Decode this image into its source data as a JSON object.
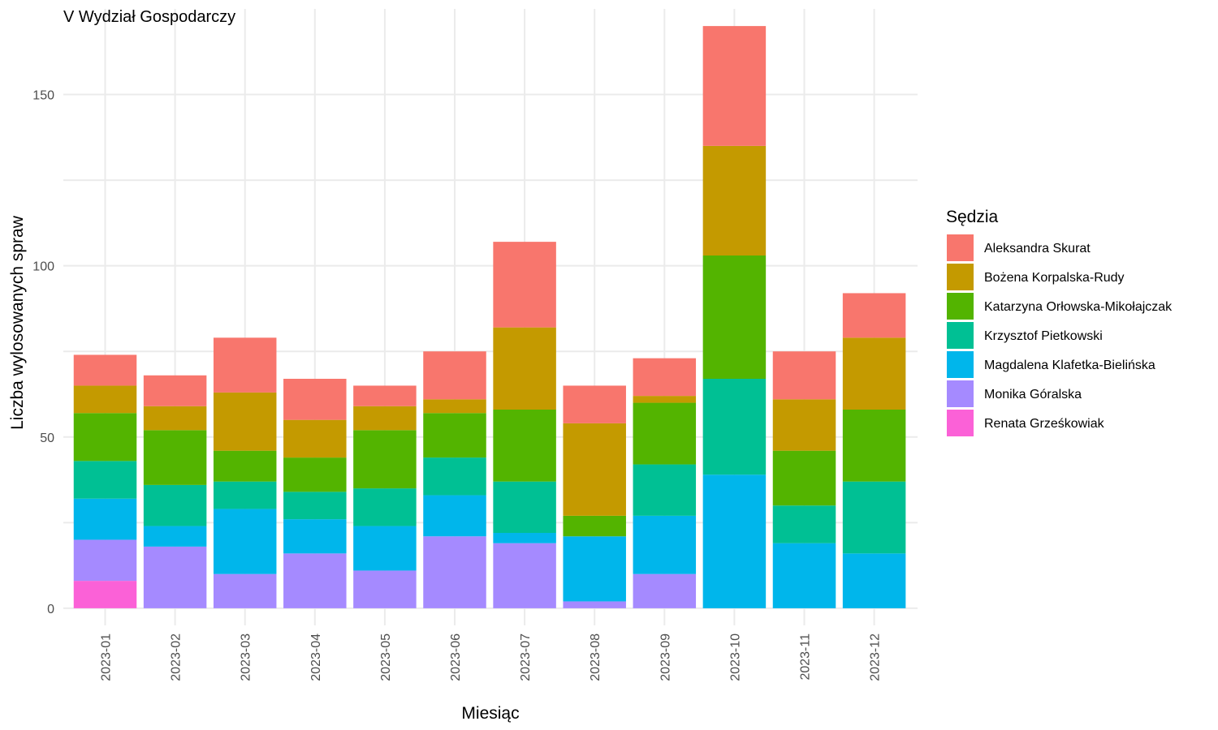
{
  "chart_data": {
    "type": "bar",
    "stacked": true,
    "title": "V Wydział Gospodarczy",
    "xlabel": "Miesiąc",
    "ylabel": "Liczba wylosowanych spraw",
    "ylim": [
      -5,
      175
    ],
    "yticks": [
      0,
      50,
      100,
      150
    ],
    "grid": true,
    "legend_title": "Sędzia",
    "legend_position": "right",
    "categories": [
      "2023-01",
      "2023-02",
      "2023-03",
      "2023-04",
      "2023-05",
      "2023-06",
      "2023-07",
      "2023-08",
      "2023-09",
      "2023-10",
      "2023-11",
      "2023-12"
    ],
    "series": [
      {
        "name": "Aleksandra Skurat",
        "color": "#F8766D",
        "values": [
          9,
          9,
          16,
          12,
          6,
          14,
          25,
          11,
          11,
          35,
          14,
          13
        ]
      },
      {
        "name": "Bożena Korpalska-Rudy",
        "color": "#C49A00",
        "values": [
          8,
          7,
          17,
          11,
          7,
          4,
          24,
          27,
          2,
          32,
          15,
          21
        ]
      },
      {
        "name": "Katarzyna Orłowska-Mikołajczak",
        "color": "#53B400",
        "values": [
          14,
          16,
          9,
          10,
          17,
          13,
          21,
          6,
          18,
          36,
          16,
          21
        ]
      },
      {
        "name": "Krzysztof Pietkowski",
        "color": "#00C094",
        "values": [
          11,
          12,
          8,
          8,
          11,
          11,
          15,
          0,
          15,
          28,
          11,
          21
        ]
      },
      {
        "name": "Magdalena Klafetka-Bielińska",
        "color": "#00B6EB",
        "values": [
          12,
          6,
          19,
          10,
          13,
          12,
          3,
          19,
          17,
          39,
          19,
          16
        ]
      },
      {
        "name": "Monika Góralska",
        "color": "#A58AFF",
        "values": [
          12,
          18,
          10,
          16,
          11,
          21,
          19,
          2,
          10,
          0,
          0,
          0
        ]
      },
      {
        "name": "Renata Grześkowiak",
        "color": "#FB61D7",
        "values": [
          8,
          0,
          0,
          0,
          0,
          0,
          0,
          0,
          0,
          0,
          0,
          0
        ]
      }
    ]
  }
}
